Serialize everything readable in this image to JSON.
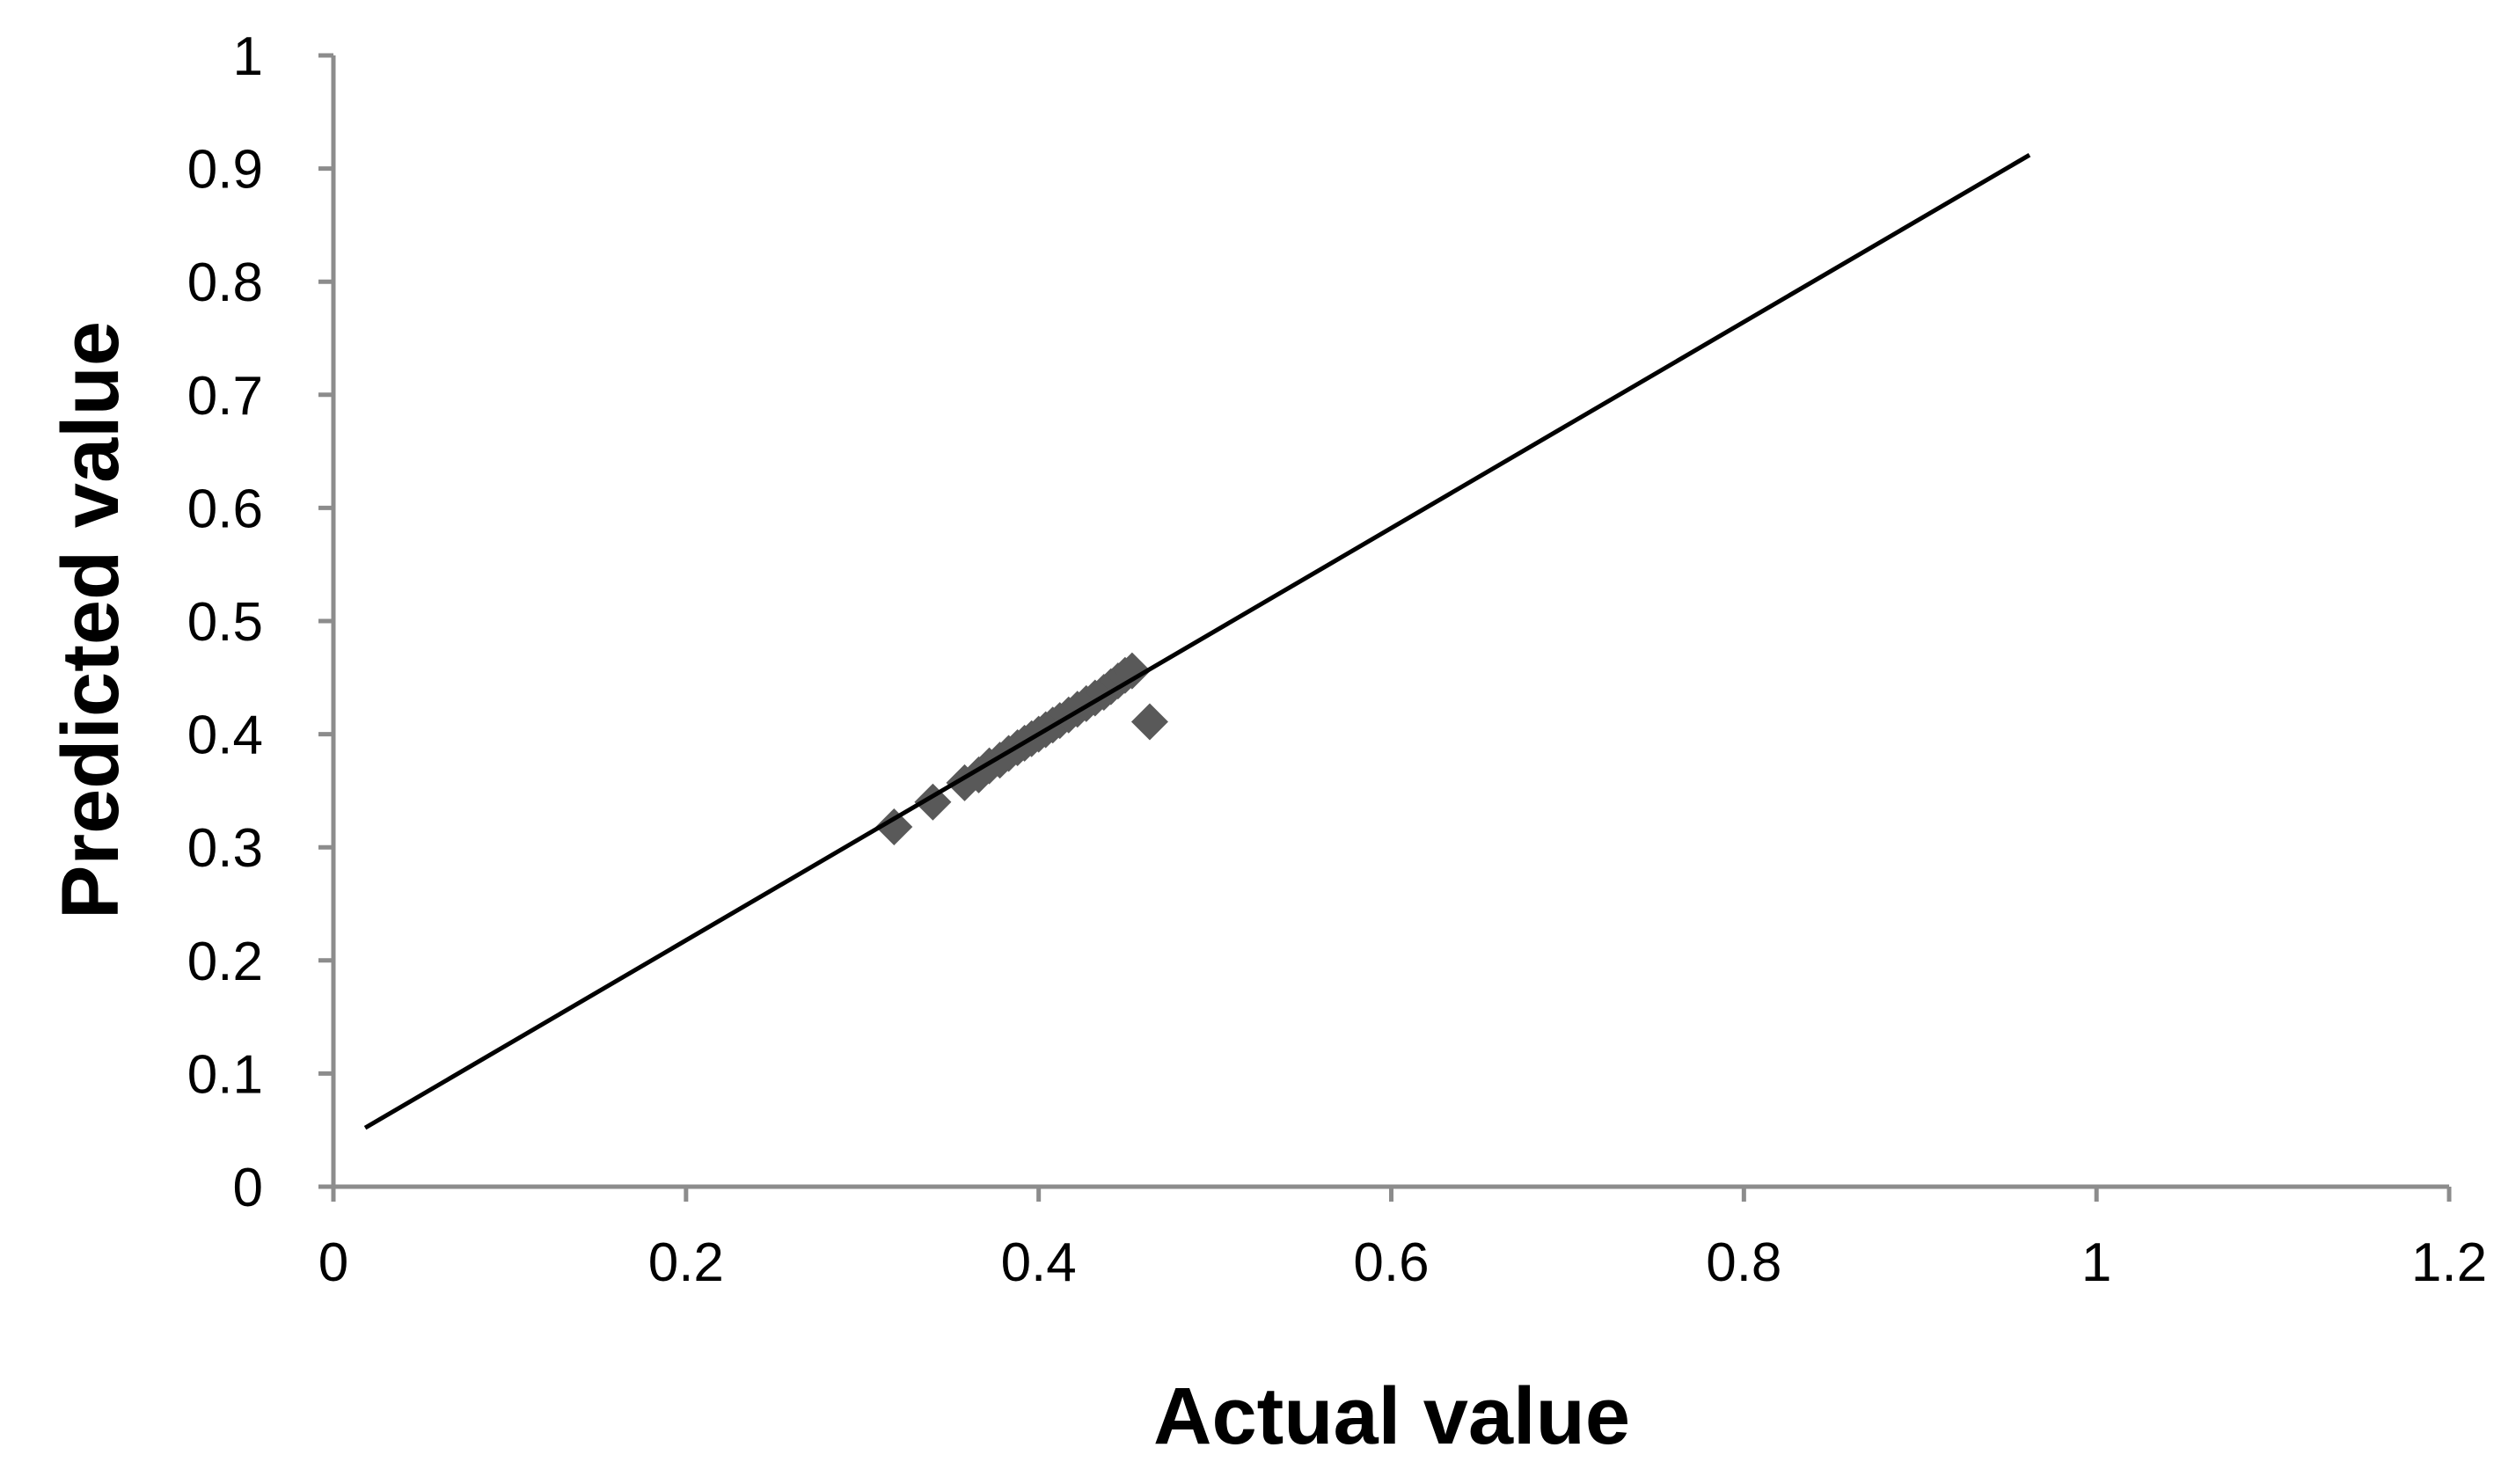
{
  "chart_data": {
    "type": "scatter",
    "title": "",
    "xlabel": "Actual value",
    "ylabel": "Predicted value",
    "xlim": [
      0,
      1.2
    ],
    "ylim": [
      0,
      1
    ],
    "xticks": [
      0,
      0.2,
      0.4,
      0.6,
      0.8,
      1,
      1.2
    ],
    "xtick_labels": [
      "0",
      "0.2",
      "0.4",
      "0.6",
      "0.8",
      "1",
      "1.2"
    ],
    "yticks": [
      0,
      0.1,
      0.2,
      0.3,
      0.4,
      0.5,
      0.6,
      0.7,
      0.8,
      0.9,
      1
    ],
    "ytick_labels": [
      "0",
      "0.1",
      "0.2",
      "0.3",
      "0.4",
      "0.5",
      "0.6",
      "0.7",
      "0.8",
      "0.9",
      "1"
    ],
    "grid": false,
    "legend": "none",
    "marker": "diamond",
    "marker_color": "#595959",
    "line_color": "#000000",
    "axis_color": "#8c8c8c",
    "points": [
      {
        "x": 0.318,
        "y": 0.318
      },
      {
        "x": 0.34,
        "y": 0.34
      },
      {
        "x": 0.358,
        "y": 0.357
      },
      {
        "x": 0.366,
        "y": 0.364
      },
      {
        "x": 0.372,
        "y": 0.372
      },
      {
        "x": 0.378,
        "y": 0.377
      },
      {
        "x": 0.383,
        "y": 0.383
      },
      {
        "x": 0.388,
        "y": 0.388
      },
      {
        "x": 0.392,
        "y": 0.392
      },
      {
        "x": 0.396,
        "y": 0.396
      },
      {
        "x": 0.4,
        "y": 0.4
      },
      {
        "x": 0.404,
        "y": 0.404
      },
      {
        "x": 0.408,
        "y": 0.408
      },
      {
        "x": 0.412,
        "y": 0.412
      },
      {
        "x": 0.417,
        "y": 0.417
      },
      {
        "x": 0.422,
        "y": 0.422
      },
      {
        "x": 0.427,
        "y": 0.427
      },
      {
        "x": 0.432,
        "y": 0.432
      },
      {
        "x": 0.437,
        "y": 0.437
      },
      {
        "x": 0.441,
        "y": 0.442
      },
      {
        "x": 0.445,
        "y": 0.447
      },
      {
        "x": 0.449,
        "y": 0.452
      },
      {
        "x": 0.453,
        "y": 0.456
      },
      {
        "x": 0.463,
        "y": 0.411
      }
    ],
    "fit_line": {
      "x": [
        0.018,
        0.962
      ],
      "y": [
        0.052,
        0.912
      ]
    }
  }
}
